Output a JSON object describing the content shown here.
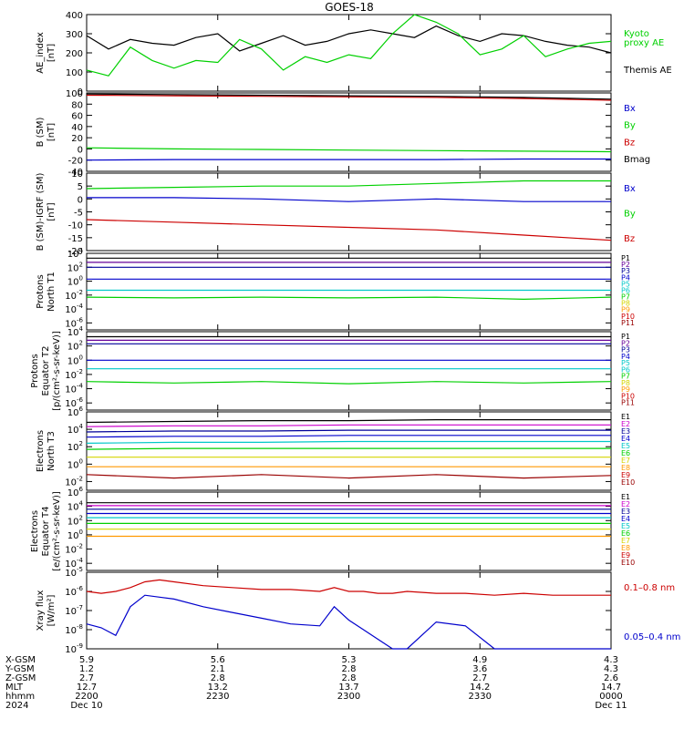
{
  "title": "GOES-18",
  "colors": {
    "black": "#000000",
    "green": "#00d000",
    "red": "#cc0000",
    "blue": "#0000cc",
    "darkred": "#990000",
    "navy": "#000099",
    "cyan": "#00c8c8",
    "lime": "#00d000",
    "yellow": "#d4d400",
    "orange": "#ff9900",
    "purple": "#660099",
    "magenta": "#cc00cc"
  },
  "x_axis": {
    "rows": [
      {
        "label": "X-GSM",
        "values": [
          "5.9",
          "5.6",
          "5.3",
          "4.9",
          "4.3"
        ]
      },
      {
        "label": "Y-GSM",
        "values": [
          "1.2",
          "2.1",
          "2.8",
          "3.6",
          "4.3"
        ]
      },
      {
        "label": "Z-GSM",
        "values": [
          "2.7",
          "2.8",
          "2.8",
          "2.7",
          "2.6"
        ]
      },
      {
        "label": "MLT",
        "values": [
          "12.7",
          "13.2",
          "13.7",
          "14.2",
          "14.7"
        ]
      },
      {
        "label": "hhmm",
        "values": [
          "2200",
          "2230",
          "2300",
          "2330",
          "0000"
        ]
      },
      {
        "label": "2024",
        "values": [
          "Dec 10",
          "",
          "",
          "",
          "Dec 11"
        ]
      }
    ]
  },
  "chart_data": [
    {
      "type": "line",
      "panel": "ae",
      "ylabel": [
        "AE_index",
        "[nT]"
      ],
      "ylim": [
        0,
        400
      ],
      "yticks": [
        "400",
        "300",
        "200",
        "100",
        "0"
      ],
      "x": [
        0,
        15,
        30,
        45,
        60,
        75,
        90,
        105,
        120,
        135,
        150,
        165,
        180,
        195,
        210,
        225,
        240,
        255,
        270,
        285,
        300,
        315,
        330,
        345,
        360
      ],
      "series": [
        {
          "name": "Themis AE",
          "color": "black",
          "values": [
            290,
            220,
            270,
            250,
            240,
            280,
            300,
            210,
            250,
            290,
            240,
            260,
            300,
            320,
            300,
            280,
            340,
            290,
            260,
            300,
            290,
            260,
            240,
            230,
            200
          ]
        },
        {
          "name": "Kyoto proxy AE",
          "color": "green",
          "values": [
            110,
            80,
            230,
            160,
            120,
            160,
            150,
            270,
            220,
            110,
            180,
            150,
            190,
            170,
            300,
            400,
            360,
            300,
            190,
            220,
            290,
            180,
            220,
            250,
            260
          ]
        }
      ],
      "legend": [
        {
          "text": "Kyoto",
          "color": "green"
        },
        {
          "text": "proxy AE",
          "color": "green"
        },
        {
          "text": "Themis AE",
          "color": "black"
        }
      ]
    },
    {
      "type": "line",
      "panel": "b",
      "ylabel": [
        "B (SM)",
        "[nT]"
      ],
      "ylim": [
        -40,
        100
      ],
      "yticks": [
        "100",
        "80",
        "60",
        "40",
        "20",
        "0",
        "-20",
        "-40"
      ],
      "x": [
        0,
        60,
        120,
        180,
        240,
        300,
        360
      ],
      "series": [
        {
          "name": "Bx",
          "color": "blue",
          "values": [
            -20,
            -19,
            -19,
            -19,
            -19,
            -18,
            -18
          ]
        },
        {
          "name": "By",
          "color": "green",
          "values": [
            2,
            0,
            -1,
            -2,
            -3,
            -4,
            -5
          ]
        },
        {
          "name": "Bz",
          "color": "red",
          "values": [
            96,
            95,
            94,
            93,
            92,
            90,
            87
          ]
        },
        {
          "name": "Bmag",
          "color": "black",
          "values": [
            98,
            97,
            96,
            95,
            94,
            92,
            89
          ]
        }
      ],
      "legend": [
        {
          "text": "Bx",
          "color": "blue"
        },
        {
          "text": "By",
          "color": "green"
        },
        {
          "text": "Bz",
          "color": "red"
        },
        {
          "text": "Bmag",
          "color": "black"
        }
      ]
    },
    {
      "type": "line",
      "panel": "db",
      "ylabel": [
        "B (SM)-IGRF (SM)",
        "[nT]"
      ],
      "ylim": [
        -20,
        10
      ],
      "yticks": [
        "10",
        "5",
        "0",
        "-5",
        "-10",
        "-15",
        "-20"
      ],
      "x": [
        0,
        60,
        120,
        180,
        240,
        300,
        360
      ],
      "series": [
        {
          "name": "Bx",
          "color": "blue",
          "values": [
            0.5,
            0.5,
            0,
            -1,
            0,
            -1,
            -1
          ]
        },
        {
          "name": "By",
          "color": "green",
          "values": [
            4,
            4.5,
            5,
            5,
            6,
            7,
            7
          ]
        },
        {
          "name": "Bz",
          "color": "red",
          "values": [
            -8,
            -9,
            -10,
            -11,
            -12,
            -14,
            -16
          ]
        }
      ],
      "legend": [
        {
          "text": "Bx",
          "color": "blue"
        },
        {
          "text": "By",
          "color": "green"
        },
        {
          "text": "Bz",
          "color": "red"
        }
      ]
    },
    {
      "type": "line",
      "panel": "p1",
      "log": true,
      "ylabel": [
        "Protons",
        "North T1"
      ],
      "ylim": [
        -7,
        4
      ],
      "yticks": [
        4,
        2,
        0,
        -2,
        -4,
        -6
      ],
      "channels": [
        "P1",
        "P2",
        "P3",
        "P4",
        "P5",
        "P6",
        "P7",
        "P8",
        "P9",
        "P10",
        "P11"
      ],
      "channel_colors": [
        "black",
        "purple",
        "navy",
        "blue",
        "cyan",
        "cyan",
        "lime",
        "yellow",
        "orange",
        "red",
        "darkred"
      ],
      "series": [
        {
          "name": "P1",
          "color": "black",
          "values": [
            3.3,
            3.3,
            3.3,
            3.3,
            3.3,
            3.3,
            3.3
          ]
        },
        {
          "name": "P2",
          "color": "purple",
          "values": [
            2.7,
            2.7,
            2.7,
            2.7,
            2.7,
            2.7,
            2.7
          ]
        },
        {
          "name": "P3",
          "color": "navy",
          "values": [
            2.0,
            2.0,
            2.0,
            2.0,
            2.0,
            2.0,
            2.0
          ]
        },
        {
          "name": "P4",
          "color": "blue",
          "values": [
            0.3,
            0.3,
            0.3,
            0.3,
            0.3,
            0.3,
            0.3
          ]
        },
        {
          "name": "P5",
          "color": "cyan",
          "values": [
            -1.3,
            -1.3,
            -1.3,
            -1.3,
            -1.3,
            -1.3,
            -1.3
          ]
        },
        {
          "name": "P6",
          "color": "lime",
          "values": [
            -2.3,
            -2.4,
            -2.3,
            -2.4,
            -2.3,
            -2.6,
            -2.3
          ]
        }
      ]
    },
    {
      "type": "line",
      "panel": "p2",
      "log": true,
      "ylabel": [
        "Protons",
        "Equator T2",
        "[p/(cm²-s-sr-keV)]"
      ],
      "ylim": [
        -7,
        4
      ],
      "yticks": [
        4,
        2,
        0,
        -2,
        -4,
        -6
      ],
      "channels": [
        "P1",
        "P2",
        "P3",
        "P4",
        "P5",
        "P6",
        "P7",
        "P8",
        "P9",
        "P10",
        "P11"
      ],
      "channel_colors": [
        "black",
        "purple",
        "navy",
        "blue",
        "cyan",
        "cyan",
        "lime",
        "yellow",
        "orange",
        "red",
        "darkred"
      ],
      "series": [
        {
          "name": "P1",
          "color": "black",
          "values": [
            3.3,
            3.3,
            3.3,
            3.3,
            3.3,
            3.3,
            3.3
          ]
        },
        {
          "name": "P2",
          "color": "purple",
          "values": [
            2.8,
            2.8,
            2.8,
            2.8,
            2.8,
            2.8,
            2.8
          ]
        },
        {
          "name": "P3",
          "color": "navy",
          "values": [
            2.3,
            2.3,
            2.3,
            2.3,
            2.3,
            2.3,
            2.3
          ]
        },
        {
          "name": "P4",
          "color": "blue",
          "values": [
            0.0,
            0.0,
            0.0,
            0.0,
            0.0,
            0.0,
            0.0
          ]
        },
        {
          "name": "P5",
          "color": "cyan",
          "values": [
            -1.2,
            -1.2,
            -1.2,
            -1.2,
            -1.2,
            -1.2,
            -1.2
          ]
        },
        {
          "name": "P6",
          "color": "lime",
          "values": [
            -3.0,
            -3.2,
            -3.0,
            -3.3,
            -3.0,
            -3.2,
            -3.0
          ]
        }
      ]
    },
    {
      "type": "line",
      "panel": "e1",
      "log": true,
      "ylabel": [
        "Electrons",
        "North T3"
      ],
      "ylim": [
        -3,
        6
      ],
      "yticks": [
        6,
        4,
        2,
        0,
        -2
      ],
      "channels": [
        "E1",
        "E2",
        "E3",
        "E4",
        "E5",
        "E6",
        "E7",
        "E8",
        "E9",
        "E10"
      ],
      "channel_colors": [
        "black",
        "magenta",
        "navy",
        "blue",
        "cyan",
        "lime",
        "yellow",
        "orange",
        "red",
        "darkred"
      ],
      "series": [
        {
          "name": "E1",
          "color": "black",
          "values": [
            4.8,
            4.9,
            5.0,
            5.0,
            5.1,
            5.1,
            5.1
          ]
        },
        {
          "name": "E2",
          "color": "magenta",
          "values": [
            4.3,
            4.4,
            4.4,
            4.5,
            4.5,
            4.5,
            4.5
          ]
        },
        {
          "name": "E3",
          "color": "navy",
          "values": [
            3.7,
            3.8,
            3.8,
            3.9,
            3.9,
            3.9,
            3.9
          ]
        },
        {
          "name": "E4",
          "color": "blue",
          "values": [
            3.1,
            3.2,
            3.2,
            3.3,
            3.3,
            3.3,
            3.3
          ]
        },
        {
          "name": "E5",
          "color": "cyan",
          "values": [
            2.4,
            2.5,
            2.5,
            2.6,
            2.6,
            2.6,
            2.6
          ]
        },
        {
          "name": "E6",
          "color": "lime",
          "values": [
            1.7,
            1.8,
            1.8,
            1.8,
            1.8,
            1.8,
            1.8
          ]
        },
        {
          "name": "E7",
          "color": "yellow",
          "values": [
            0.8,
            0.8,
            0.8,
            0.8,
            0.8,
            0.8,
            0.8
          ]
        },
        {
          "name": "E8",
          "color": "orange",
          "values": [
            -0.3,
            -0.3,
            -0.3,
            -0.3,
            -0.3,
            -0.3,
            -0.3
          ]
        },
        {
          "name": "E9",
          "color": "darkred",
          "values": [
            -1.2,
            -1.6,
            -1.2,
            -1.6,
            -1.2,
            -1.6,
            -1.3
          ]
        }
      ]
    },
    {
      "type": "line",
      "panel": "e2",
      "log": true,
      "ylabel": [
        "Electrons",
        "Equator T4",
        "[e/(cm²-s-sr-keV)]"
      ],
      "ylim": [
        -5,
        6
      ],
      "yticks": [
        6,
        4,
        2,
        0,
        -2,
        -4
      ],
      "channels": [
        "E1",
        "E2",
        "E3",
        "E4",
        "E5",
        "E6",
        "E7",
        "E8",
        "E9",
        "E10"
      ],
      "channel_colors": [
        "black",
        "magenta",
        "navy",
        "blue",
        "cyan",
        "lime",
        "yellow",
        "orange",
        "red",
        "darkred"
      ],
      "series": [
        {
          "name": "E1",
          "color": "black",
          "values": [
            4.5,
            4.5,
            4.5,
            4.5,
            4.5,
            4.5,
            4.5
          ]
        },
        {
          "name": "E2",
          "color": "magenta",
          "values": [
            4.1,
            4.1,
            4.1,
            4.1,
            4.1,
            4.1,
            4.1
          ]
        },
        {
          "name": "E3",
          "color": "navy",
          "values": [
            3.6,
            3.6,
            3.6,
            3.6,
            3.6,
            3.6,
            3.6
          ]
        },
        {
          "name": "E4",
          "color": "blue",
          "values": [
            3.0,
            3.0,
            3.0,
            3.0,
            3.0,
            3.0,
            3.0
          ]
        },
        {
          "name": "E5",
          "color": "cyan",
          "values": [
            2.4,
            2.4,
            2.4,
            2.4,
            2.4,
            2.4,
            2.4
          ]
        },
        {
          "name": "E6",
          "color": "lime",
          "values": [
            1.6,
            1.6,
            1.6,
            1.6,
            1.6,
            1.6,
            1.6
          ]
        },
        {
          "name": "E7",
          "color": "yellow",
          "values": [
            0.8,
            0.8,
            0.8,
            0.8,
            0.8,
            0.8,
            0.8
          ]
        },
        {
          "name": "E8",
          "color": "orange",
          "values": [
            -0.2,
            -0.2,
            -0.2,
            -0.2,
            -0.2,
            -0.2,
            -0.2
          ]
        }
      ]
    },
    {
      "type": "line",
      "panel": "xray",
      "log": true,
      "ylabel": [
        "Xray flux",
        "[W/m²]"
      ],
      "ylim": [
        -9,
        -5
      ],
      "yticks": [
        -5,
        -6,
        -7,
        -8,
        -9
      ],
      "x": [
        0,
        10,
        20,
        30,
        40,
        50,
        60,
        80,
        100,
        120,
        140,
        160,
        170,
        180,
        190,
        200,
        210,
        220,
        240,
        260,
        280,
        300,
        320,
        340,
        360
      ],
      "series": [
        {
          "name": "0.1-0.8 nm",
          "color": "red",
          "values": [
            -6.0,
            -6.1,
            -6.0,
            -5.8,
            -5.5,
            -5.4,
            -5.5,
            -5.7,
            -5.8,
            -5.9,
            -5.9,
            -6.0,
            -5.8,
            -6.0,
            -6.0,
            -6.1,
            -6.1,
            -6.0,
            -6.1,
            -6.1,
            -6.2,
            -6.1,
            -6.2,
            -6.2,
            -6.2
          ]
        },
        {
          "name": "0.05-0.4 nm",
          "color": "blue",
          "values": [
            -7.7,
            -7.9,
            -8.3,
            -6.8,
            -6.2,
            -6.3,
            -6.4,
            -6.8,
            -7.1,
            -7.4,
            -7.7,
            -7.8,
            -6.8,
            -7.5,
            -8.0,
            -8.5,
            -9.5,
            -9.5,
            -7.6,
            -7.8,
            -9.5,
            -9.5,
            -9.5,
            -9.5,
            -9.5
          ]
        }
      ],
      "legend": [
        {
          "text": "0.1–0.8 nm",
          "color": "red"
        },
        {
          "text": "0.05–0.4 nm",
          "color": "blue"
        }
      ]
    }
  ]
}
